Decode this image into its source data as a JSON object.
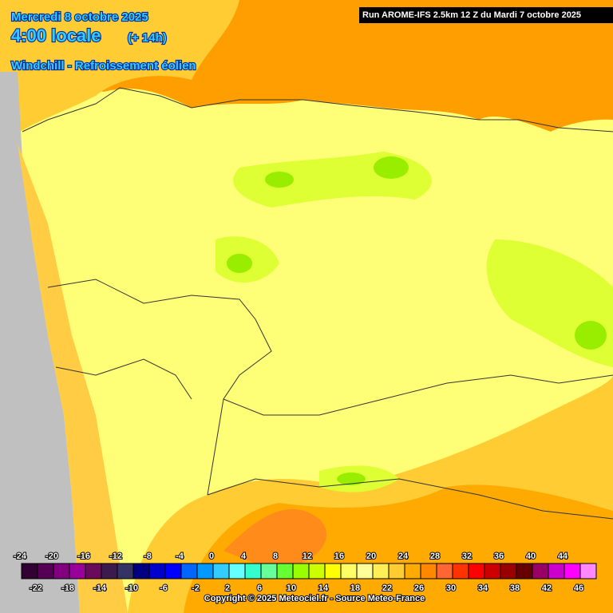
{
  "header": {
    "date": "Mercredi 8 octobre 2025",
    "time": "4:00 locale",
    "offset": "(+ 14h)",
    "parameter": "Windchill - Refroissement éolien",
    "run": "Run AROME-IFS 2.5km 12 Z du Mardi 7 octobre 2025"
  },
  "legend": {
    "values": [
      -24,
      -22,
      -20,
      -18,
      -16,
      -14,
      -12,
      -10,
      -8,
      -6,
      -4,
      -2,
      0,
      2,
      4,
      6,
      8,
      10,
      12,
      14,
      16,
      18,
      20,
      22,
      24,
      26,
      28,
      30,
      32,
      34,
      36,
      38,
      40,
      42,
      44,
      46
    ],
    "colors": [
      "#330033",
      "#550055",
      "#800080",
      "#990099",
      "#6a0a5a",
      "#3d1a4d",
      "#333366",
      "#000080",
      "#0000cc",
      "#0000ff",
      "#0066ff",
      "#0099ff",
      "#33ccff",
      "#66ffff",
      "#33ffcc",
      "#66ff99",
      "#66ff33",
      "#99ff00",
      "#ccff00",
      "#ffff00",
      "#ffff66",
      "#ffff99",
      "#ffee55",
      "#ffcc33",
      "#ffaa00",
      "#ff8800",
      "#ff6633",
      "#ff3300",
      "#ff0000",
      "#cc0000",
      "#990000",
      "#660000",
      "#990066",
      "#cc00cc",
      "#ff00ff",
      "#ff88ff"
    ]
  },
  "footer": {
    "copyright": "Copyright © 2025 Meteociel.fr - Source Meteo-France"
  }
}
